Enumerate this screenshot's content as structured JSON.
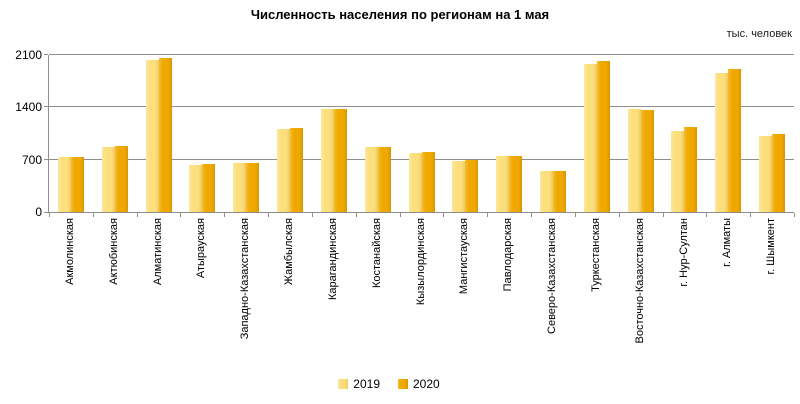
{
  "chart_data": {
    "type": "bar",
    "title": "Численность населения по регионам на 1 мая",
    "unit": "тыс. человек",
    "categories": [
      "Акмолинская",
      "Актюбинская",
      "Алматинская",
      "Атырауская",
      "Западно-Казахстанская",
      "Жамбылская",
      "Карагандинская",
      "Костанайская",
      "Кызылординская",
      "Мангистауская",
      "Павлодарская",
      "Северо-Казахстанская",
      "Туркестанская",
      "Восточно-Казахстанская",
      "г. Нур-Султан",
      "г. Алматы",
      "г. Шымкент"
    ],
    "series": [
      {
        "name": "2019",
        "color": "#FBDF7D",
        "color_light": "#FCE79E",
        "color_dark": "#EFC75E",
        "values": [
          736,
          871,
          2039,
          634,
          653,
          1115,
          1378,
          872,
          794,
          678,
          753,
          554,
          1983,
          1378,
          1078,
          1854,
          1010
        ]
      },
      {
        "name": "2020",
        "color": "#EEA800",
        "color_light": "#F5BE35",
        "color_dark": "#D99800",
        "values": [
          738,
          882,
          2055,
          647,
          656,
          1125,
          1377,
          868,
          803,
          698,
          752,
          548,
          2016,
          1369,
          1136,
          1916,
          1039
        ]
      }
    ],
    "ylim": [
      0,
      2100
    ],
    "yticks": [
      0,
      700,
      1400,
      2100
    ],
    "grid": true,
    "legend_position": "bottom",
    "grid_color": "#8f8f8f",
    "axis_color": "#8f8f8f",
    "text_color": "#000000"
  }
}
